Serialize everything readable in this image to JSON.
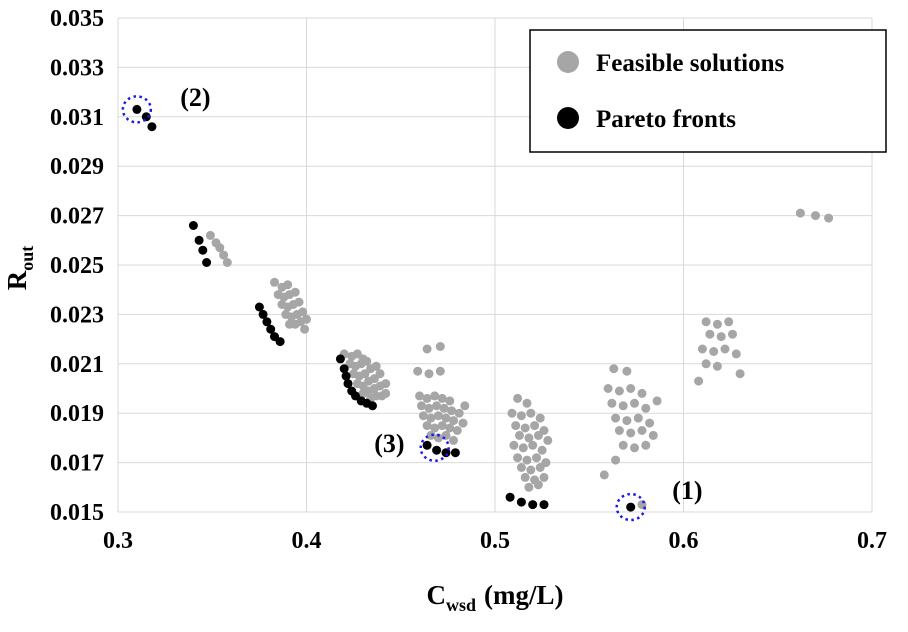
{
  "chart_data": {
    "type": "scatter",
    "title": "",
    "xlabel_main": "C",
    "xlabel_sub": "wsd",
    "xlabel_rest": "(mg/L)",
    "ylabel_main": "R",
    "ylabel_sub": "out",
    "xlim": [
      0.3,
      0.7
    ],
    "ylim": [
      0.015,
      0.035
    ],
    "grid": true,
    "x_ticks": [
      {
        "value": 0.3,
        "label": "0.3"
      },
      {
        "value": 0.4,
        "label": "0.4"
      },
      {
        "value": 0.5,
        "label": "0.5"
      },
      {
        "value": 0.6,
        "label": "0.6"
      },
      {
        "value": 0.7,
        "label": "0.7"
      }
    ],
    "y_ticks": [
      {
        "value": 0.015,
        "label": "0.015"
      },
      {
        "value": 0.017,
        "label": "0.017"
      },
      {
        "value": 0.019,
        "label": "0.019"
      },
      {
        "value": 0.021,
        "label": "0.021"
      },
      {
        "value": 0.023,
        "label": "0.023"
      },
      {
        "value": 0.025,
        "label": "0.025"
      },
      {
        "value": 0.027,
        "label": "0.027"
      },
      {
        "value": 0.029,
        "label": "0.029"
      },
      {
        "value": 0.031,
        "label": "0.031"
      },
      {
        "value": 0.033,
        "label": "0.033"
      },
      {
        "value": 0.035,
        "label": "0.035"
      }
    ],
    "legend": [
      {
        "label": "Feasible solutions",
        "color": "#a6a6a6"
      },
      {
        "label": "Pareto fronts",
        "color": "#000000"
      }
    ],
    "annotation_color": "#1b1be8",
    "annotations": [
      {
        "label": "(2)",
        "circle": [
          0.31,
          0.0313
        ],
        "label_pos": [
          0.333,
          0.0318
        ],
        "anchor": "start"
      },
      {
        "label": "(3)",
        "circle": [
          0.468,
          0.0176
        ],
        "label_pos": [
          0.452,
          0.0178
        ],
        "anchor": "end"
      },
      {
        "label": "(1)",
        "circle": [
          0.572,
          0.0152
        ],
        "label_pos": [
          0.594,
          0.0159
        ],
        "anchor": "start"
      }
    ],
    "series": [
      {
        "name": "Feasible solutions",
        "color": "#a6a6a6",
        "points": [
          [
            0.349,
            0.0262
          ],
          [
            0.352,
            0.0259
          ],
          [
            0.354,
            0.0257
          ],
          [
            0.356,
            0.0254
          ],
          [
            0.358,
            0.0251
          ],
          [
            0.383,
            0.0243
          ],
          [
            0.387,
            0.0241
          ],
          [
            0.39,
            0.0242
          ],
          [
            0.385,
            0.0238
          ],
          [
            0.388,
            0.0237
          ],
          [
            0.391,
            0.0238
          ],
          [
            0.394,
            0.0239
          ],
          [
            0.387,
            0.0234
          ],
          [
            0.39,
            0.0233
          ],
          [
            0.393,
            0.0234
          ],
          [
            0.396,
            0.0235
          ],
          [
            0.389,
            0.023
          ],
          [
            0.392,
            0.0229
          ],
          [
            0.395,
            0.023
          ],
          [
            0.398,
            0.0231
          ],
          [
            0.391,
            0.0226
          ],
          [
            0.394,
            0.0226
          ],
          [
            0.397,
            0.0227
          ],
          [
            0.4,
            0.0228
          ],
          [
            0.399,
            0.0224
          ],
          [
            0.42,
            0.0214
          ],
          [
            0.424,
            0.0213
          ],
          [
            0.427,
            0.0214
          ],
          [
            0.43,
            0.0212
          ],
          [
            0.423,
            0.021
          ],
          [
            0.426,
            0.0209
          ],
          [
            0.429,
            0.021
          ],
          [
            0.432,
            0.0211
          ],
          [
            0.425,
            0.0206
          ],
          [
            0.428,
            0.0205
          ],
          [
            0.431,
            0.0206
          ],
          [
            0.434,
            0.0208
          ],
          [
            0.437,
            0.0209
          ],
          [
            0.427,
            0.0202
          ],
          [
            0.43,
            0.0201
          ],
          [
            0.433,
            0.0203
          ],
          [
            0.436,
            0.0204
          ],
          [
            0.439,
            0.0206
          ],
          [
            0.43,
            0.0198
          ],
          [
            0.433,
            0.0199
          ],
          [
            0.436,
            0.02
          ],
          [
            0.439,
            0.0201
          ],
          [
            0.442,
            0.0202
          ],
          [
            0.434,
            0.0196
          ],
          [
            0.437,
            0.0197
          ],
          [
            0.44,
            0.0197
          ],
          [
            0.442,
            0.0198
          ],
          [
            0.464,
            0.0216
          ],
          [
            0.471,
            0.0217
          ],
          [
            0.459,
            0.0207
          ],
          [
            0.465,
            0.0206
          ],
          [
            0.471,
            0.0207
          ],
          [
            0.46,
            0.0197
          ],
          [
            0.464,
            0.0196
          ],
          [
            0.468,
            0.0197
          ],
          [
            0.472,
            0.0196
          ],
          [
            0.476,
            0.0195
          ],
          [
            0.461,
            0.0193
          ],
          [
            0.465,
            0.0192
          ],
          [
            0.469,
            0.0193
          ],
          [
            0.473,
            0.0192
          ],
          [
            0.477,
            0.0191
          ],
          [
            0.462,
            0.0189
          ],
          [
            0.466,
            0.0188
          ],
          [
            0.47,
            0.0189
          ],
          [
            0.474,
            0.0188
          ],
          [
            0.478,
            0.0187
          ],
          [
            0.481,
            0.019
          ],
          [
            0.484,
            0.0193
          ],
          [
            0.464,
            0.0185
          ],
          [
            0.468,
            0.0184
          ],
          [
            0.472,
            0.0185
          ],
          [
            0.476,
            0.0184
          ],
          [
            0.48,
            0.0183
          ],
          [
            0.466,
            0.0181
          ],
          [
            0.47,
            0.018
          ],
          [
            0.474,
            0.0181
          ],
          [
            0.478,
            0.0179
          ],
          [
            0.483,
            0.0186
          ],
          [
            0.512,
            0.0196
          ],
          [
            0.517,
            0.0194
          ],
          [
            0.509,
            0.019
          ],
          [
            0.514,
            0.0189
          ],
          [
            0.519,
            0.019
          ],
          [
            0.524,
            0.0188
          ],
          [
            0.511,
            0.0185
          ],
          [
            0.516,
            0.0184
          ],
          [
            0.521,
            0.0185
          ],
          [
            0.526,
            0.0183
          ],
          [
            0.513,
            0.0181
          ],
          [
            0.518,
            0.018
          ],
          [
            0.523,
            0.0181
          ],
          [
            0.528,
            0.0179
          ],
          [
            0.51,
            0.0177
          ],
          [
            0.515,
            0.0176
          ],
          [
            0.52,
            0.0177
          ],
          [
            0.525,
            0.0175
          ],
          [
            0.512,
            0.0172
          ],
          [
            0.517,
            0.0171
          ],
          [
            0.522,
            0.0172
          ],
          [
            0.527,
            0.017
          ],
          [
            0.514,
            0.0168
          ],
          [
            0.519,
            0.0167
          ],
          [
            0.524,
            0.0168
          ],
          [
            0.516,
            0.0164
          ],
          [
            0.521,
            0.0163
          ],
          [
            0.526,
            0.0164
          ],
          [
            0.518,
            0.016
          ],
          [
            0.523,
            0.0161
          ],
          [
            0.563,
            0.0208
          ],
          [
            0.57,
            0.0207
          ],
          [
            0.56,
            0.02
          ],
          [
            0.566,
            0.0199
          ],
          [
            0.572,
            0.02
          ],
          [
            0.578,
            0.0198
          ],
          [
            0.562,
            0.0194
          ],
          [
            0.568,
            0.0193
          ],
          [
            0.574,
            0.0194
          ],
          [
            0.58,
            0.0192
          ],
          [
            0.586,
            0.0195
          ],
          [
            0.564,
            0.0188
          ],
          [
            0.57,
            0.0187
          ],
          [
            0.576,
            0.0188
          ],
          [
            0.582,
            0.0186
          ],
          [
            0.566,
            0.0183
          ],
          [
            0.572,
            0.0182
          ],
          [
            0.578,
            0.0183
          ],
          [
            0.584,
            0.0181
          ],
          [
            0.568,
            0.0177
          ],
          [
            0.574,
            0.0176
          ],
          [
            0.58,
            0.0177
          ],
          [
            0.558,
            0.0165
          ],
          [
            0.564,
            0.0171
          ],
          [
            0.578,
            0.0153
          ],
          [
            0.612,
            0.0227
          ],
          [
            0.618,
            0.0226
          ],
          [
            0.624,
            0.0227
          ],
          [
            0.614,
            0.0222
          ],
          [
            0.62,
            0.0221
          ],
          [
            0.626,
            0.0222
          ],
          [
            0.61,
            0.0216
          ],
          [
            0.616,
            0.0215
          ],
          [
            0.622,
            0.0216
          ],
          [
            0.628,
            0.0214
          ],
          [
            0.612,
            0.021
          ],
          [
            0.618,
            0.0209
          ],
          [
            0.608,
            0.0203
          ],
          [
            0.63,
            0.0206
          ],
          [
            0.662,
            0.0271
          ],
          [
            0.67,
            0.027
          ],
          [
            0.677,
            0.0269
          ]
        ]
      },
      {
        "name": "Pareto fronts",
        "color": "#000000",
        "points": [
          [
            0.31,
            0.0313
          ],
          [
            0.315,
            0.031
          ],
          [
            0.318,
            0.0306
          ],
          [
            0.34,
            0.0266
          ],
          [
            0.343,
            0.026
          ],
          [
            0.345,
            0.0256
          ],
          [
            0.347,
            0.0251
          ],
          [
            0.375,
            0.0233
          ],
          [
            0.377,
            0.023
          ],
          [
            0.379,
            0.0227
          ],
          [
            0.381,
            0.0224
          ],
          [
            0.383,
            0.0221
          ],
          [
            0.386,
            0.0219
          ],
          [
            0.418,
            0.0212
          ],
          [
            0.42,
            0.0208
          ],
          [
            0.421,
            0.0205
          ],
          [
            0.422,
            0.0202
          ],
          [
            0.424,
            0.0199
          ],
          [
            0.426,
            0.0197
          ],
          [
            0.429,
            0.0195
          ],
          [
            0.432,
            0.0194
          ],
          [
            0.435,
            0.0193
          ],
          [
            0.464,
            0.0177
          ],
          [
            0.469,
            0.0175
          ],
          [
            0.474,
            0.0174
          ],
          [
            0.479,
            0.0174
          ],
          [
            0.508,
            0.0156
          ],
          [
            0.514,
            0.0154
          ],
          [
            0.52,
            0.0153
          ],
          [
            0.526,
            0.0153
          ],
          [
            0.572,
            0.0152
          ]
        ]
      }
    ]
  }
}
